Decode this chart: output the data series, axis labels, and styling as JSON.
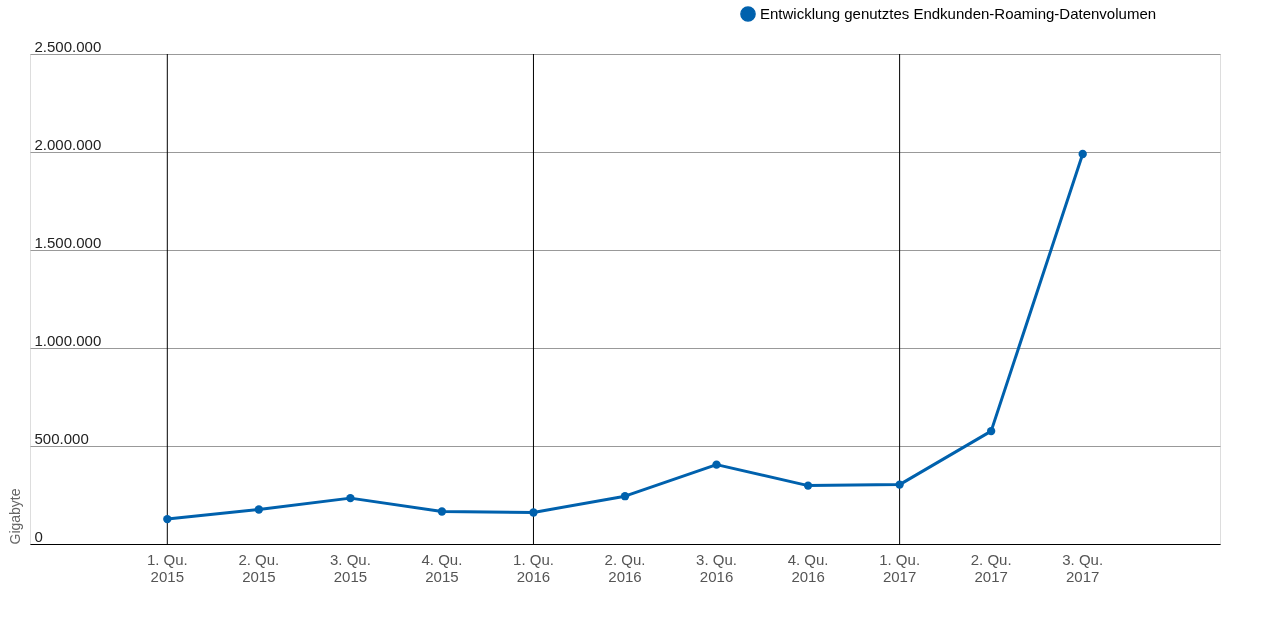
{
  "chart_data": {
    "type": "line",
    "ylabel": "Gigabyte",
    "categories": [
      "1. Qu.\n2015",
      "2. Qu.\n2015",
      "3. Qu.\n2015",
      "4. Qu.\n2015",
      "1. Qu.\n2016",
      "2. Qu.\n2016",
      "3. Qu.\n2016",
      "4. Qu.\n2016",
      "1. Qu.\n2017",
      "2. Qu.\n2017",
      "3. Qu.\n2017"
    ],
    "series": [
      {
        "name": "Entwicklung genutztes Endkunden-Roaming-Datenvolumen",
        "color": "#0061ad",
        "values": [
          127000,
          176000,
          234000,
          166000,
          161000,
          244000,
          405000,
          298000,
          303000,
          576000,
          1990000
        ]
      }
    ],
    "ylim": [
      0,
      2500000
    ],
    "yticks": [
      {
        "value": 0,
        "label": "0"
      },
      {
        "value": 500000,
        "label": "500.000"
      },
      {
        "value": 1000000,
        "label": "1.000.000"
      },
      {
        "value": 1500000,
        "label": "1.500.000"
      },
      {
        "value": 2000000,
        "label": "2.000.000"
      },
      {
        "value": 2500000,
        "label": "2.500.000"
      }
    ],
    "ref_lines": [
      {
        "axis": "x",
        "value": "1. Qu.\n2015",
        "color": "#000000"
      },
      {
        "axis": "x",
        "value": "1. Qu.\n2016",
        "color": "#000000"
      },
      {
        "axis": "x",
        "value": "1. Qu.\n2017",
        "color": "#000000"
      }
    ],
    "grid": "y",
    "legend": "top right",
    "marker": "circle",
    "line_style": "solid"
  }
}
